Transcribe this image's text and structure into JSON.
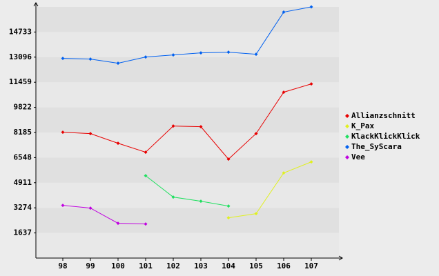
{
  "chart_data": {
    "type": "line",
    "categories": [
      "98",
      "99",
      "100",
      "101",
      "102",
      "103",
      "104",
      "105",
      "106",
      "107"
    ],
    "series": [
      {
        "name": "Allianzschnitt",
        "color": "#e80000",
        "values": [
          8203,
          8113,
          7483,
          6898,
          8607,
          8562,
          6448,
          8113,
          10811,
          11351
        ]
      },
      {
        "name": "K_Pax",
        "color": "#e0f020",
        "values": [
          null,
          null,
          null,
          null,
          null,
          null,
          2626,
          2896,
          5549,
          6269
        ]
      },
      {
        "name": "KlackKlickKlick",
        "color": "#20e060",
        "values": [
          null,
          null,
          null,
          5369,
          3975,
          3705,
          3391,
          null,
          null,
          null
        ]
      },
      {
        "name": "The_SyScara",
        "color": "#0060f0",
        "values": [
          13015,
          12970,
          12700,
          13105,
          13240,
          13375,
          13420,
          13285,
          16030,
          16370
        ]
      },
      {
        "name": "Vee",
        "color": "#c000e0",
        "values": [
          3436,
          3256,
          2267,
          2222,
          null,
          null,
          null,
          null,
          null,
          null
        ]
      }
    ],
    "ylim": [
      0,
      16370
    ],
    "yticks": [
      1637,
      3274,
      4911,
      6548,
      8185,
      9822,
      11459,
      13096,
      14733
    ],
    "grid": true
  }
}
